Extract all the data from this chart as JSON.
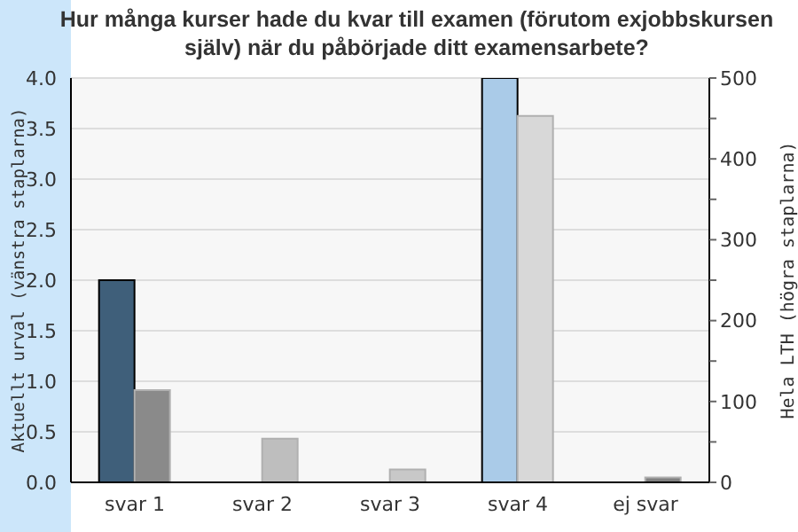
{
  "chart_data": {
    "type": "bar",
    "title": "Hur många kurser hade du kvar till examen (förutom exjobbskursen själv) när du påbörjade ditt examensarbete?",
    "ylabel": "Aktuellt urval (vänstra staplarna)",
    "y2label": "Hela LTH (högra staplarna)",
    "categories": [
      "svar 1",
      "svar 2",
      "svar 3",
      "svar 4",
      "ej svar"
    ],
    "series": [
      {
        "colors": [
          "#3f5f7a",
          "#3f5f7a",
          "#3f5f7a",
          "#aacbe8",
          "#3f5f7a"
        ],
        "values": [
          2,
          null,
          null,
          4,
          null
        ]
      },
      {
        "axis": "y2",
        "colors": [
          "#8a8a8a",
          "#bebebe",
          "#c8c8c8",
          "#d8d8d8",
          "#808080"
        ],
        "values": [
          114,
          54,
          16,
          453,
          6
        ]
      }
    ],
    "ylim": [
      0,
      4
    ],
    "yticks": [
      {
        "value": 0,
        "label": "0.0"
      },
      {
        "value": 0.5,
        "label": "0.5"
      },
      {
        "value": 1,
        "label": "1.0"
      },
      {
        "value": 1.5,
        "label": "1.5"
      },
      {
        "value": 2,
        "label": "2.0"
      },
      {
        "value": 2.5,
        "label": "2.5"
      },
      {
        "value": 3,
        "label": "3.0"
      },
      {
        "value": 3.5,
        "label": "3.5"
      },
      {
        "value": 4,
        "label": "4.0"
      }
    ],
    "y2lim": [
      0,
      500
    ],
    "y2ticks": [
      0,
      {
        "value": 50,
        "label": null
      },
      100,
      {
        "value": 150,
        "label": null
      },
      200,
      {
        "value": 250,
        "label": null
      },
      300,
      {
        "value": 350,
        "label": null
      },
      400,
      {
        "value": 450,
        "label": null
      },
      500
    ],
    "grid": "y"
  }
}
